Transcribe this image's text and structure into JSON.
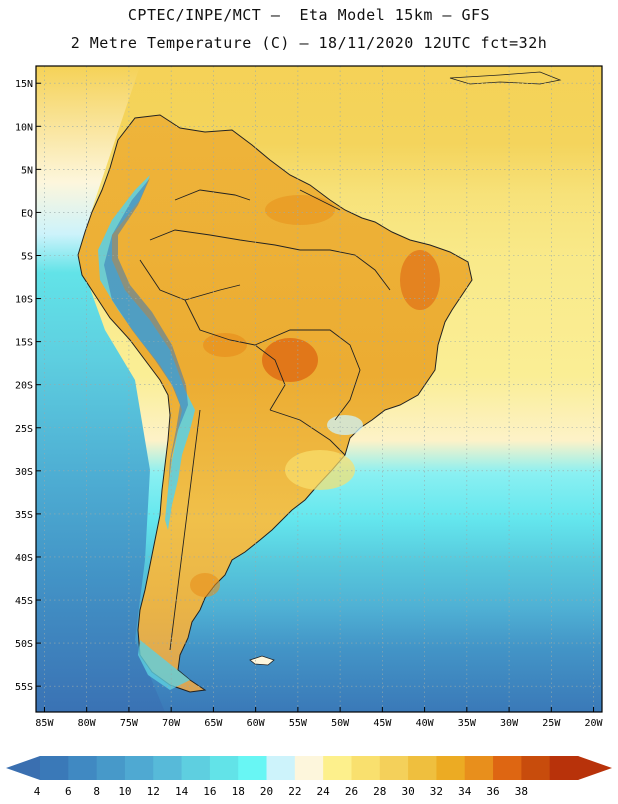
{
  "header": {
    "line1": "CPTEC/INPE/MCT –  Eta Model 15km – GFS",
    "line2": "2 Metre Temperature (C) – 18/11/2020 12UTC fct=32h"
  },
  "map": {
    "lat_labels": [
      "15N",
      "10N",
      "5N",
      "EQ",
      "5S",
      "10S",
      "15S",
      "20S",
      "25S",
      "30S",
      "35S",
      "40S",
      "45S",
      "50S",
      "55S"
    ],
    "lon_labels": [
      "85W",
      "80W",
      "75W",
      "70W",
      "65W",
      "60W",
      "55W",
      "50W",
      "45W",
      "40W",
      "35W",
      "30W",
      "25W",
      "20W"
    ],
    "extent": {
      "lon_min": -86,
      "lon_max": -19,
      "lat_min": -58,
      "lat_max": 17
    }
  },
  "colorbar": {
    "tick_labels": [
      "4",
      "6",
      "8",
      "10",
      "12",
      "14",
      "16",
      "18",
      "20",
      "22",
      "24",
      "26",
      "28",
      "30",
      "32",
      "34",
      "36",
      "38"
    ],
    "colors": [
      "#3a79b8",
      "#4089c2",
      "#4799c9",
      "#4fa9d2",
      "#57bad9",
      "#5ecfe0",
      "#62e3e8",
      "#68f6f4",
      "#cdf3fb",
      "#fdf6dc",
      "#fdf08c",
      "#f9e06e",
      "#f4d05a",
      "#efbf3e",
      "#ecab23",
      "#e88f1c",
      "#de6612",
      "#c84c0c",
      "#b8320a"
    ],
    "left_arrow_color": "#3a6fb0",
    "right_arrow_color": "#b8320a"
  }
}
